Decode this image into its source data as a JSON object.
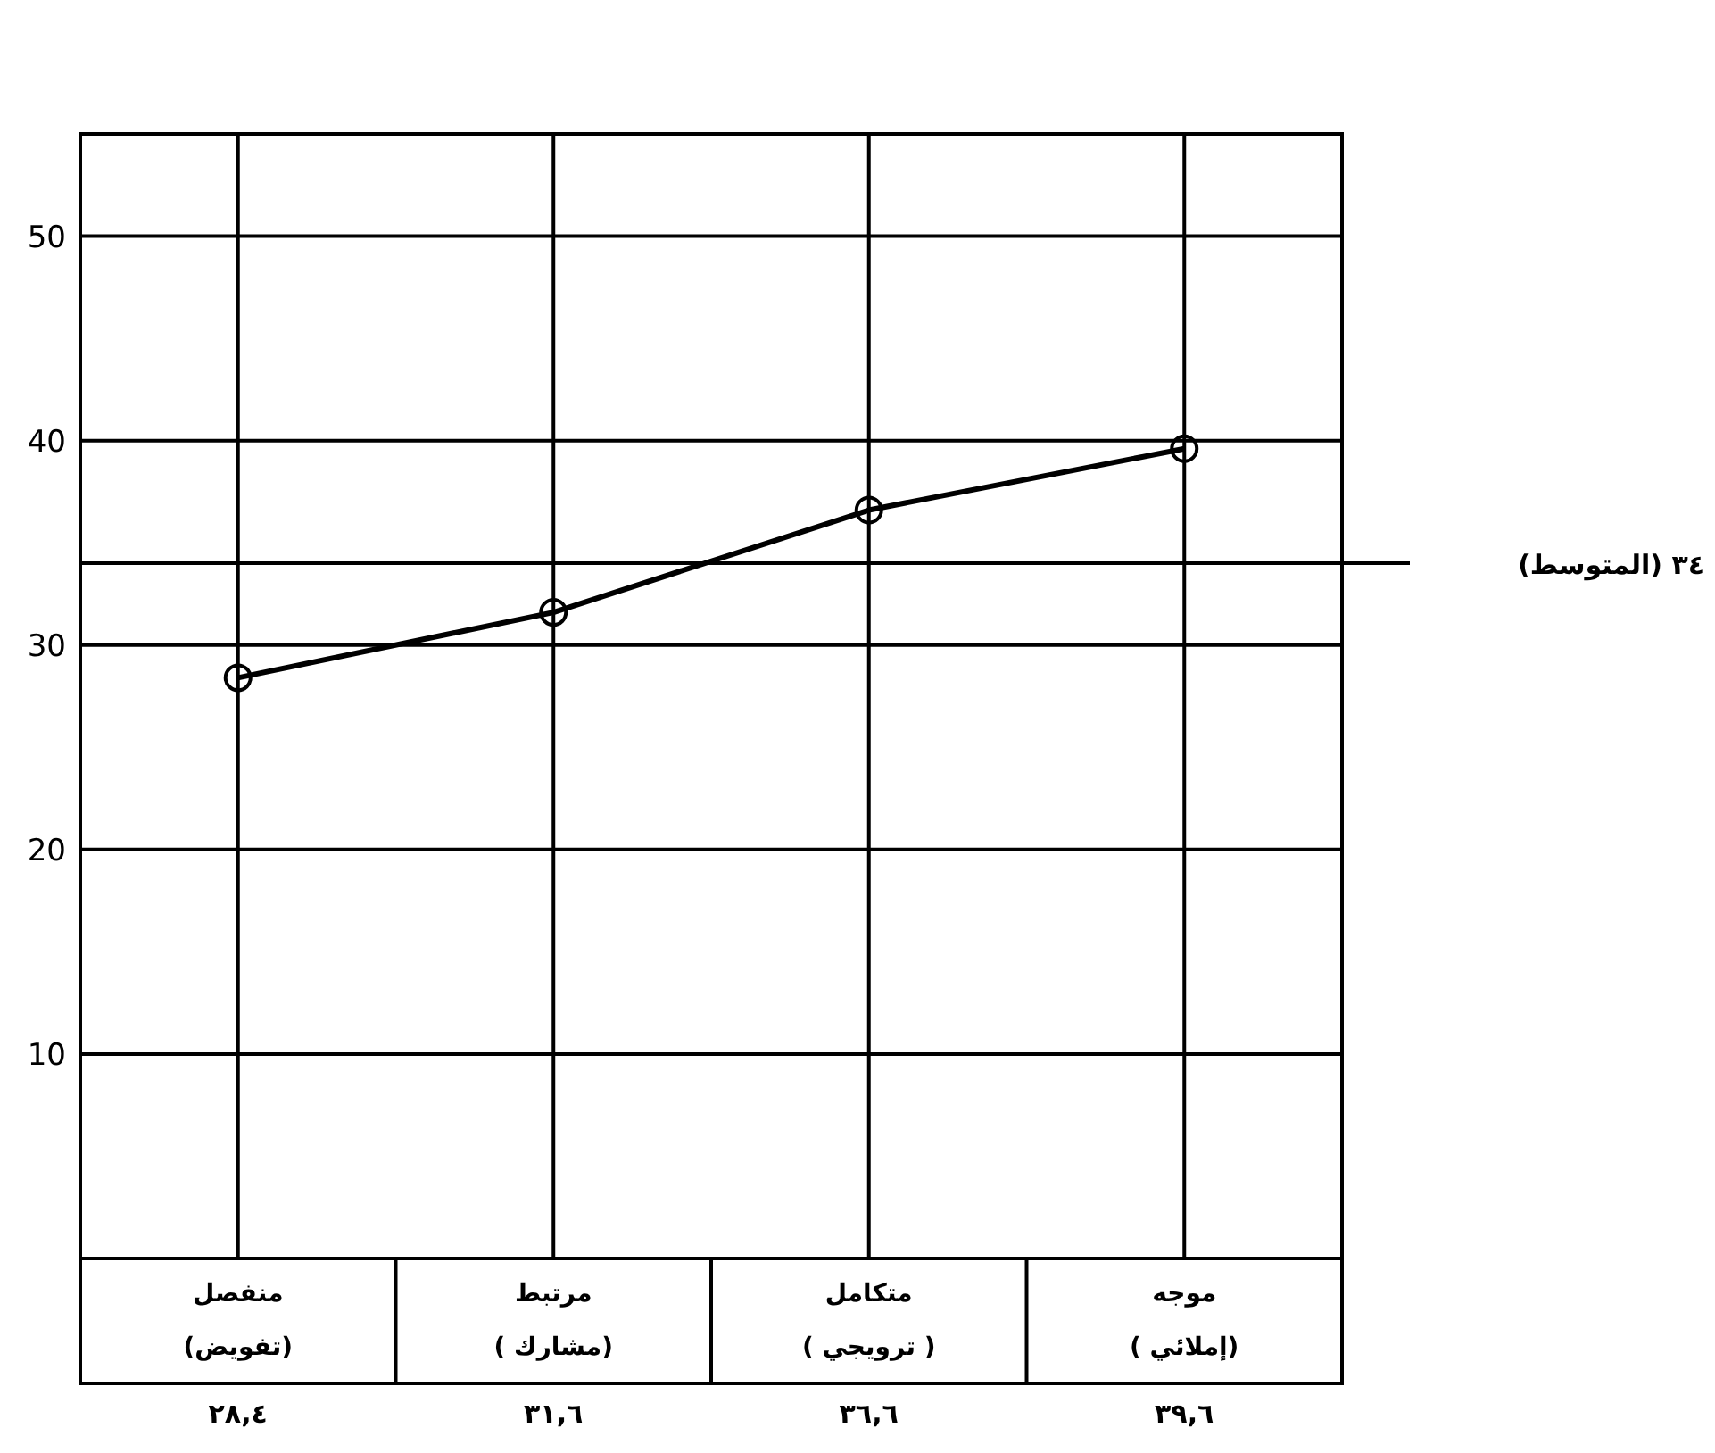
{
  "chart_data": {
    "type": "line",
    "categories": [
      "منفصل\n(تفويض)",
      "مرتبط\n(مشارك )",
      "متكامل\n( ترويجي )",
      "موجه\n(إملائي )"
    ],
    "series": [
      {
        "color": "#000000",
        "values": [
          28.4,
          31.6,
          36.6,
          39.6
        ],
        "value_labels": [
          "٢٨,٤",
          "٣١,٦",
          "٣٦,٦",
          "٣٩,٦"
        ]
      }
    ],
    "ylim": [
      0,
      55
    ],
    "yticks": [
      10,
      20,
      30,
      40,
      50
    ],
    "ref_lines": [
      {
        "axis": "y",
        "value": 34,
        "label": "٣٤ (المتوسط)"
      }
    ],
    "grid": true,
    "marker": "circle",
    "line_style": "solid"
  }
}
